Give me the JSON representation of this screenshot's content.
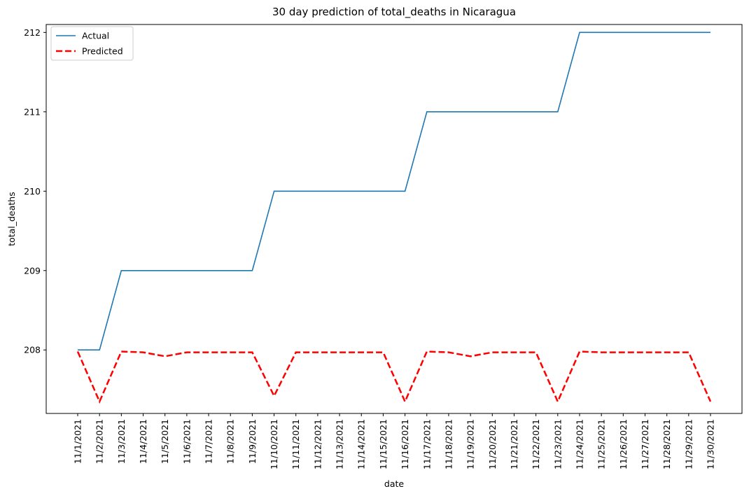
{
  "chart_data": {
    "type": "line",
    "title": "30 day prediction of total_deaths in Nicaragua",
    "xlabel": "date",
    "ylabel": "total_deaths",
    "categories": [
      "11/1/2021",
      "11/2/2021",
      "11/3/2021",
      "11/4/2021",
      "11/5/2021",
      "11/6/2021",
      "11/7/2021",
      "11/8/2021",
      "11/9/2021",
      "11/10/2021",
      "11/11/2021",
      "11/12/2021",
      "11/13/2021",
      "11/14/2021",
      "11/15/2021",
      "11/16/2021",
      "11/17/2021",
      "11/18/2021",
      "11/19/2021",
      "11/20/2021",
      "11/21/2021",
      "11/22/2021",
      "11/23/2021",
      "11/24/2021",
      "11/25/2021",
      "11/26/2021",
      "11/27/2021",
      "11/28/2021",
      "11/29/2021",
      "11/30/2021"
    ],
    "ylim": [
      207.2,
      212.1
    ],
    "yticks": [
      208,
      209,
      210,
      211,
      212
    ],
    "grid": false,
    "legend_position": "top-left",
    "series": [
      {
        "name": "Actual",
        "color": "#1f77b4",
        "style": "solid",
        "values": [
          208,
          208,
          209,
          209,
          209,
          209,
          209,
          209,
          209,
          210,
          210,
          210,
          210,
          210,
          210,
          210,
          211,
          211,
          211,
          211,
          211,
          211,
          211,
          212,
          212,
          212,
          212,
          212,
          212,
          212
        ]
      },
      {
        "name": "Predicted",
        "color": "#ff0000",
        "style": "dashed",
        "values": [
          207.98,
          207.35,
          207.98,
          207.97,
          207.92,
          207.97,
          207.97,
          207.97,
          207.97,
          207.42,
          207.97,
          207.97,
          207.97,
          207.97,
          207.97,
          207.35,
          207.98,
          207.97,
          207.92,
          207.97,
          207.97,
          207.97,
          207.35,
          207.98,
          207.97,
          207.97,
          207.97,
          207.97,
          207.97,
          207.35
        ]
      }
    ]
  }
}
